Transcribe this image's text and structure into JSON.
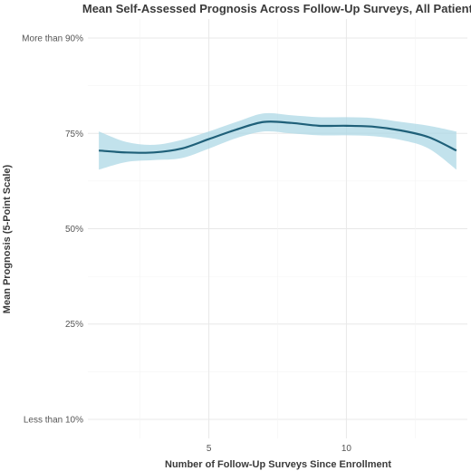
{
  "chart_data": {
    "type": "line",
    "title": "Mean Self-Assessed Prognosis Across Follow-Up Surveys, All Patients",
    "xlabel": "Number of Follow-Up Surveys Since Enrollment",
    "ylabel": "Mean Prognosis (5-Point Scale)",
    "xlim": [
      0.6,
      14.4
    ],
    "ylim": [
      0.8,
      5.2
    ],
    "x_ticks": [
      {
        "value": 5,
        "label": "5"
      },
      {
        "value": 10,
        "label": "10"
      }
    ],
    "y_ticks": [
      {
        "value": 1,
        "label": "Less than 10%"
      },
      {
        "value": 2,
        "label": "25%"
      },
      {
        "value": 3,
        "label": "50%"
      },
      {
        "value": 4,
        "label": "75%"
      },
      {
        "value": 5,
        "label": "More than 90%"
      }
    ],
    "grid": true,
    "series": [
      {
        "x": [
          1,
          2,
          3,
          4,
          5,
          6,
          7,
          8,
          9,
          10,
          11,
          12,
          13,
          14
        ],
        "y": [
          3.82,
          3.8,
          3.8,
          3.84,
          3.94,
          4.04,
          4.12,
          4.11,
          4.08,
          4.08,
          4.07,
          4.03,
          3.96,
          3.82
        ],
        "lower": [
          3.62,
          3.7,
          3.72,
          3.74,
          3.84,
          3.95,
          4.02,
          4.0,
          3.98,
          3.98,
          3.97,
          3.93,
          3.84,
          3.62
        ],
        "upper": [
          4.02,
          3.91,
          3.88,
          3.93,
          4.02,
          4.12,
          4.21,
          4.19,
          4.17,
          4.17,
          4.16,
          4.12,
          4.08,
          4.02
        ]
      }
    ],
    "colors": {
      "line": "#1f6079",
      "ribbon": "#add8e6"
    }
  }
}
